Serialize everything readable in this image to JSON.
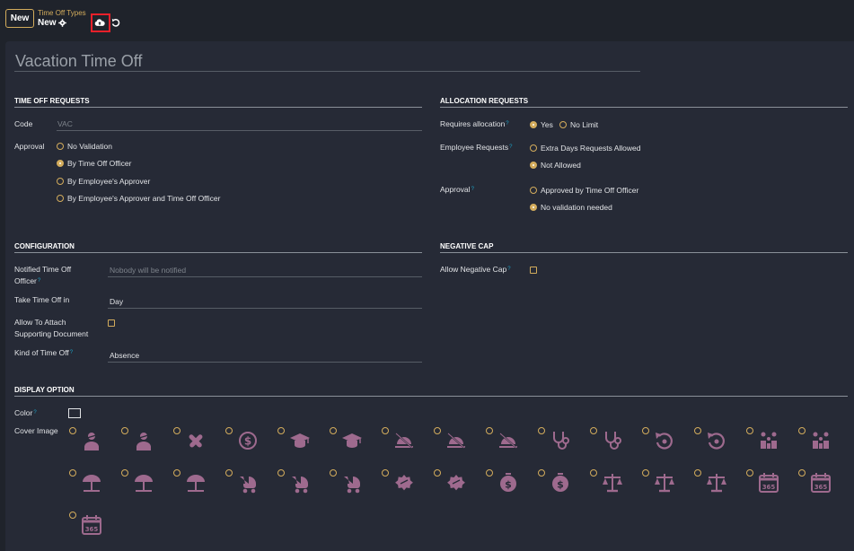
{
  "control": {
    "new_label": "New",
    "breadcrumb_parent": "Time Off Types",
    "breadcrumb_current": "New"
  },
  "form": {
    "title": "Vacation Time Off",
    "sections": {
      "time_off_requests": "TIME OFF REQUESTS",
      "allocation_requests": "ALLOCATION REQUESTS",
      "configuration": "CONFIGURATION",
      "negative_cap": "NEGATIVE CAP",
      "display_option": "DISPLAY OPTION"
    },
    "code": {
      "label": "Code",
      "placeholder": "VAC"
    },
    "approval": {
      "label": "Approval",
      "options": [
        "No Validation",
        "By Time Off Officer",
        "By Employee's Approver",
        "By Employee's Approver and Time Off Officer"
      ],
      "selected_index": 1
    },
    "requires_allocation": {
      "label": "Requires allocation",
      "options": [
        "Yes",
        "No Limit"
      ],
      "selected_index": 0
    },
    "employee_requests": {
      "label": "Employee Requests",
      "options": [
        "Extra Days Requests Allowed",
        "Not Allowed"
      ],
      "selected_index": 1
    },
    "allocation_approval": {
      "label": "Approval",
      "options": [
        "Approved by Time Off Officer",
        "No validation needed"
      ],
      "selected_index": 1
    },
    "notified_officer": {
      "label_line1": "Notified Time Off",
      "label_line2": "Officer",
      "placeholder": "Nobody will be notified"
    },
    "take_time_off_in": {
      "label": "Take Time Off in",
      "value": "Day"
    },
    "allow_attach": {
      "label_line1": "Allow To Attach",
      "label_line2": "Supporting Document",
      "checked": false
    },
    "kind_of_time_off": {
      "label": "Kind of Time Off",
      "value": "Absence"
    },
    "allow_negative_cap": {
      "label": "Allow Negative Cap",
      "checked": false
    },
    "color": {
      "label": "Color",
      "value": "#262a36"
    },
    "cover_image": {
      "label": "Cover Image",
      "icon_color": "#9e6a8e",
      "icons": [
        "user-injured-icon",
        "user-injured-outline-icon",
        "pills-crossed-icon",
        "dollar-coin-icon",
        "graduation-cap-icon",
        "graduation-cap-outline-icon",
        "sunset-slash-icon",
        "sunset-ban-icon",
        "sunset-ban-outline-icon",
        "stethoscope-icon",
        "stethoscope-outline-icon",
        "rotate-left-icon",
        "rotate-left-outline-icon",
        "family-icon",
        "family-outline-icon",
        "umbrella-beach-icon",
        "umbrella-beach-alt-icon",
        "umbrella-beach-outline-icon",
        "baby-carriage-icon",
        "baby-carriage-alt-icon",
        "baby-carriage-outline-icon",
        "certificate-badge-icon",
        "certificate-badge-outline-icon",
        "money-coin-icon",
        "money-coin-outline-icon",
        "scale-balanced-icon",
        "scale-balanced-alt-icon",
        "scale-balanced-outline-icon",
        "calendar-365-icon",
        "calendar-365-alt-icon",
        "calendar-365-outline-icon"
      ]
    }
  }
}
